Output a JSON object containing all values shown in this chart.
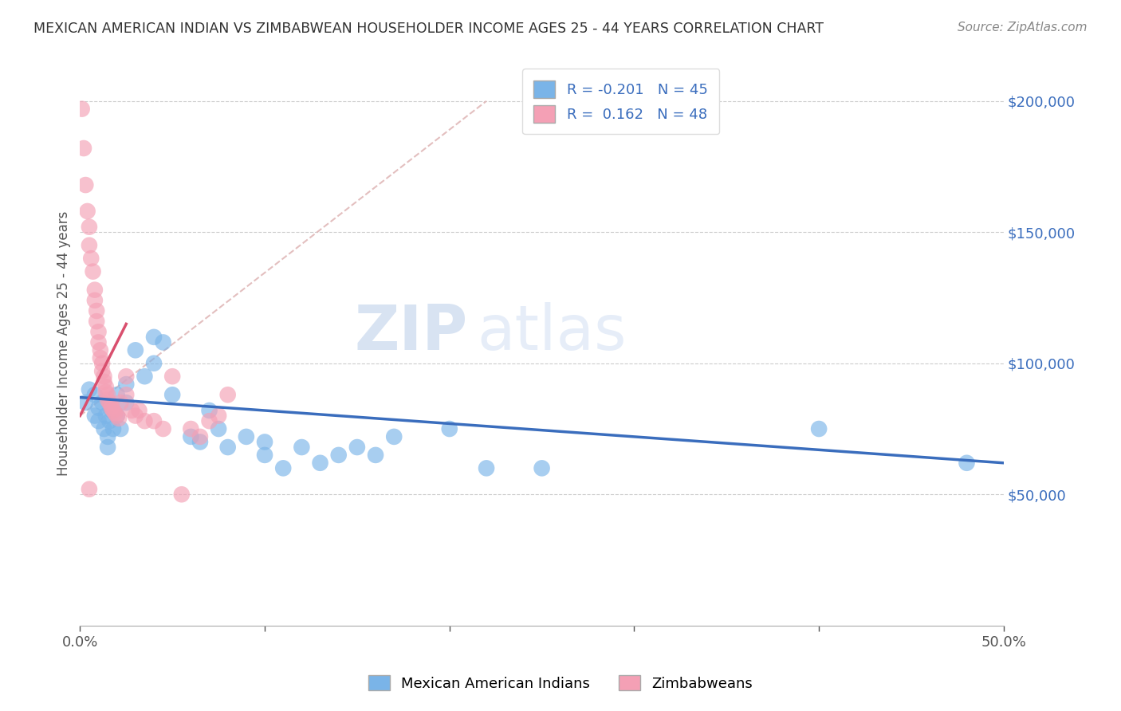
{
  "title": "MEXICAN AMERICAN INDIAN VS ZIMBABWEAN HOUSEHOLDER INCOME AGES 25 - 44 YEARS CORRELATION CHART",
  "source": "Source: ZipAtlas.com",
  "ylabel": "Householder Income Ages 25 - 44 years",
  "xlim": [
    0.0,
    0.5
  ],
  "ylim": [
    0,
    215000
  ],
  "xticks": [
    0.0,
    0.1,
    0.2,
    0.3,
    0.4,
    0.5
  ],
  "xtick_labels": [
    "0.0%",
    "",
    "",
    "",
    "",
    "50.0%"
  ],
  "ytick_labels_right": [
    "$50,000",
    "$100,000",
    "$150,000",
    "$200,000"
  ],
  "ytick_values_right": [
    50000,
    100000,
    150000,
    200000
  ],
  "blue_R": -0.201,
  "blue_N": 45,
  "pink_R": 0.162,
  "pink_N": 48,
  "blue_label": "Mexican American Indians",
  "pink_label": "Zimbabweans",
  "blue_color": "#7ab4e8",
  "pink_color": "#f4a0b5",
  "blue_line_color": "#3a6dbd",
  "pink_line_color": "#d94f6e",
  "ref_line_color": "#e0b8b8",
  "watermark_zip": "ZIP",
  "watermark_atlas": "atlas",
  "blue_x": [
    0.003,
    0.005,
    0.008,
    0.008,
    0.01,
    0.01,
    0.012,
    0.013,
    0.014,
    0.015,
    0.015,
    0.016,
    0.017,
    0.018,
    0.02,
    0.02,
    0.022,
    0.025,
    0.025,
    0.03,
    0.035,
    0.04,
    0.04,
    0.045,
    0.05,
    0.06,
    0.065,
    0.07,
    0.075,
    0.08,
    0.09,
    0.1,
    0.1,
    0.11,
    0.12,
    0.13,
    0.14,
    0.15,
    0.16,
    0.17,
    0.2,
    0.22,
    0.25,
    0.4,
    0.48
  ],
  "blue_y": [
    85000,
    90000,
    80000,
    88000,
    83000,
    78000,
    85000,
    75000,
    80000,
    72000,
    68000,
    78000,
    82000,
    75000,
    88000,
    80000,
    75000,
    92000,
    85000,
    105000,
    95000,
    110000,
    100000,
    108000,
    88000,
    72000,
    70000,
    82000,
    75000,
    68000,
    72000,
    65000,
    70000,
    60000,
    68000,
    62000,
    65000,
    68000,
    65000,
    72000,
    75000,
    60000,
    60000,
    75000,
    62000
  ],
  "pink_x": [
    0.001,
    0.002,
    0.003,
    0.004,
    0.005,
    0.005,
    0.006,
    0.007,
    0.008,
    0.008,
    0.009,
    0.009,
    0.01,
    0.01,
    0.011,
    0.011,
    0.012,
    0.012,
    0.013,
    0.013,
    0.014,
    0.014,
    0.015,
    0.015,
    0.016,
    0.017,
    0.017,
    0.018,
    0.019,
    0.02,
    0.021,
    0.022,
    0.025,
    0.028,
    0.03,
    0.032,
    0.035,
    0.04,
    0.045,
    0.05,
    0.055,
    0.06,
    0.065,
    0.07,
    0.075,
    0.08,
    0.005,
    0.025
  ],
  "pink_y": [
    197000,
    182000,
    168000,
    158000,
    152000,
    145000,
    140000,
    135000,
    128000,
    124000,
    120000,
    116000,
    112000,
    108000,
    105000,
    102000,
    100000,
    97000,
    95000,
    93000,
    91000,
    89000,
    88000,
    86000,
    85000,
    84000,
    83000,
    82000,
    81000,
    80000,
    79000,
    85000,
    88000,
    82000,
    80000,
    82000,
    78000,
    78000,
    75000,
    95000,
    50000,
    75000,
    72000,
    78000,
    80000,
    88000,
    52000,
    95000
  ]
}
